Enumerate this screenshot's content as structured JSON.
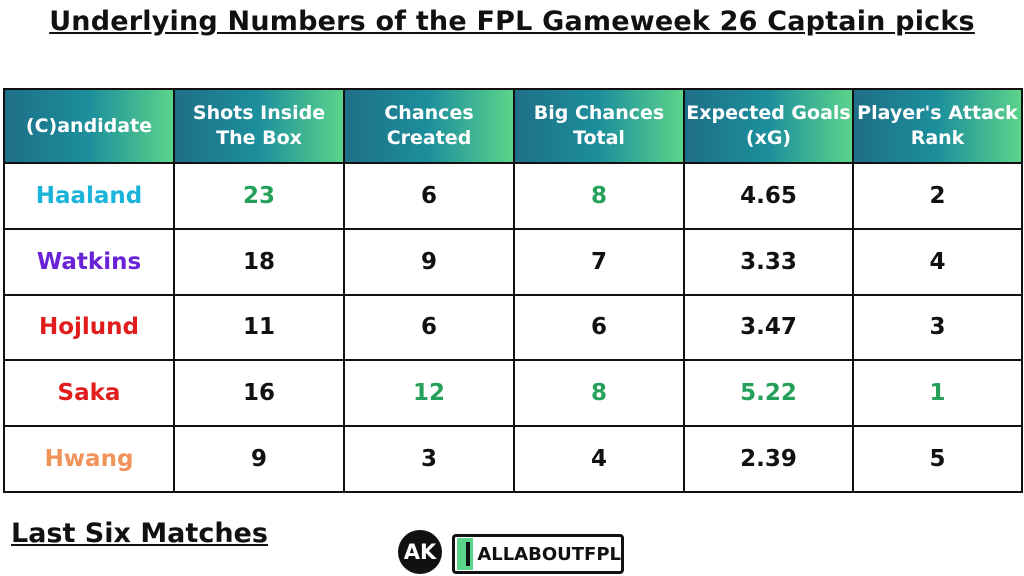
{
  "title": "Underlying Numbers of the FPL Gameweek 26 Captain picks",
  "headers": [
    "(C)andidate",
    "Shots Inside The Box",
    "Chances Created",
    "Big Chances Total",
    "Expected Goals (xG)",
    "Player's Attack Rank"
  ],
  "colors": {
    "highlight": "#25a05a",
    "header_gradient": [
      "#1e6f88",
      "#5cd38a"
    ],
    "Haaland": "#1ab3d9",
    "Watkins": "#6a22d6",
    "Hojlund": "#e01c1c",
    "Saka": "#e01c1c",
    "Hwang": "#f0935a"
  },
  "chart_data": {
    "type": "table",
    "title": "Underlying Numbers of the FPL Gameweek 26 Captain picks",
    "columns": [
      "(C)andidate",
      "Shots Inside The Box",
      "Chances Created",
      "Big Chances Total",
      "Expected Goals (xG)",
      "Player's Attack Rank"
    ],
    "rows": [
      {
        "name": "Haaland",
        "values": [
          "23",
          "6",
          "8",
          "4.65",
          "2"
        ],
        "highlight": [
          true,
          false,
          true,
          false,
          false
        ]
      },
      {
        "name": "Watkins",
        "values": [
          "18",
          "9",
          "7",
          "3.33",
          "4"
        ],
        "highlight": [
          false,
          false,
          false,
          false,
          false
        ]
      },
      {
        "name": "Hojlund",
        "values": [
          "11",
          "6",
          "6",
          "3.47",
          "3"
        ],
        "highlight": [
          false,
          false,
          false,
          false,
          false
        ]
      },
      {
        "name": "Saka",
        "values": [
          "16",
          "12",
          "8",
          "5.22",
          "1"
        ],
        "highlight": [
          false,
          true,
          true,
          true,
          true
        ]
      },
      {
        "name": "Hwang",
        "values": [
          "9",
          "3",
          "4",
          "2.39",
          "5"
        ],
        "highlight": [
          false,
          false,
          false,
          false,
          false
        ]
      }
    ]
  },
  "footer": {
    "label": "Last Six Matches",
    "logo_initials": "AK",
    "brand": "ALLABOUTFPL"
  }
}
